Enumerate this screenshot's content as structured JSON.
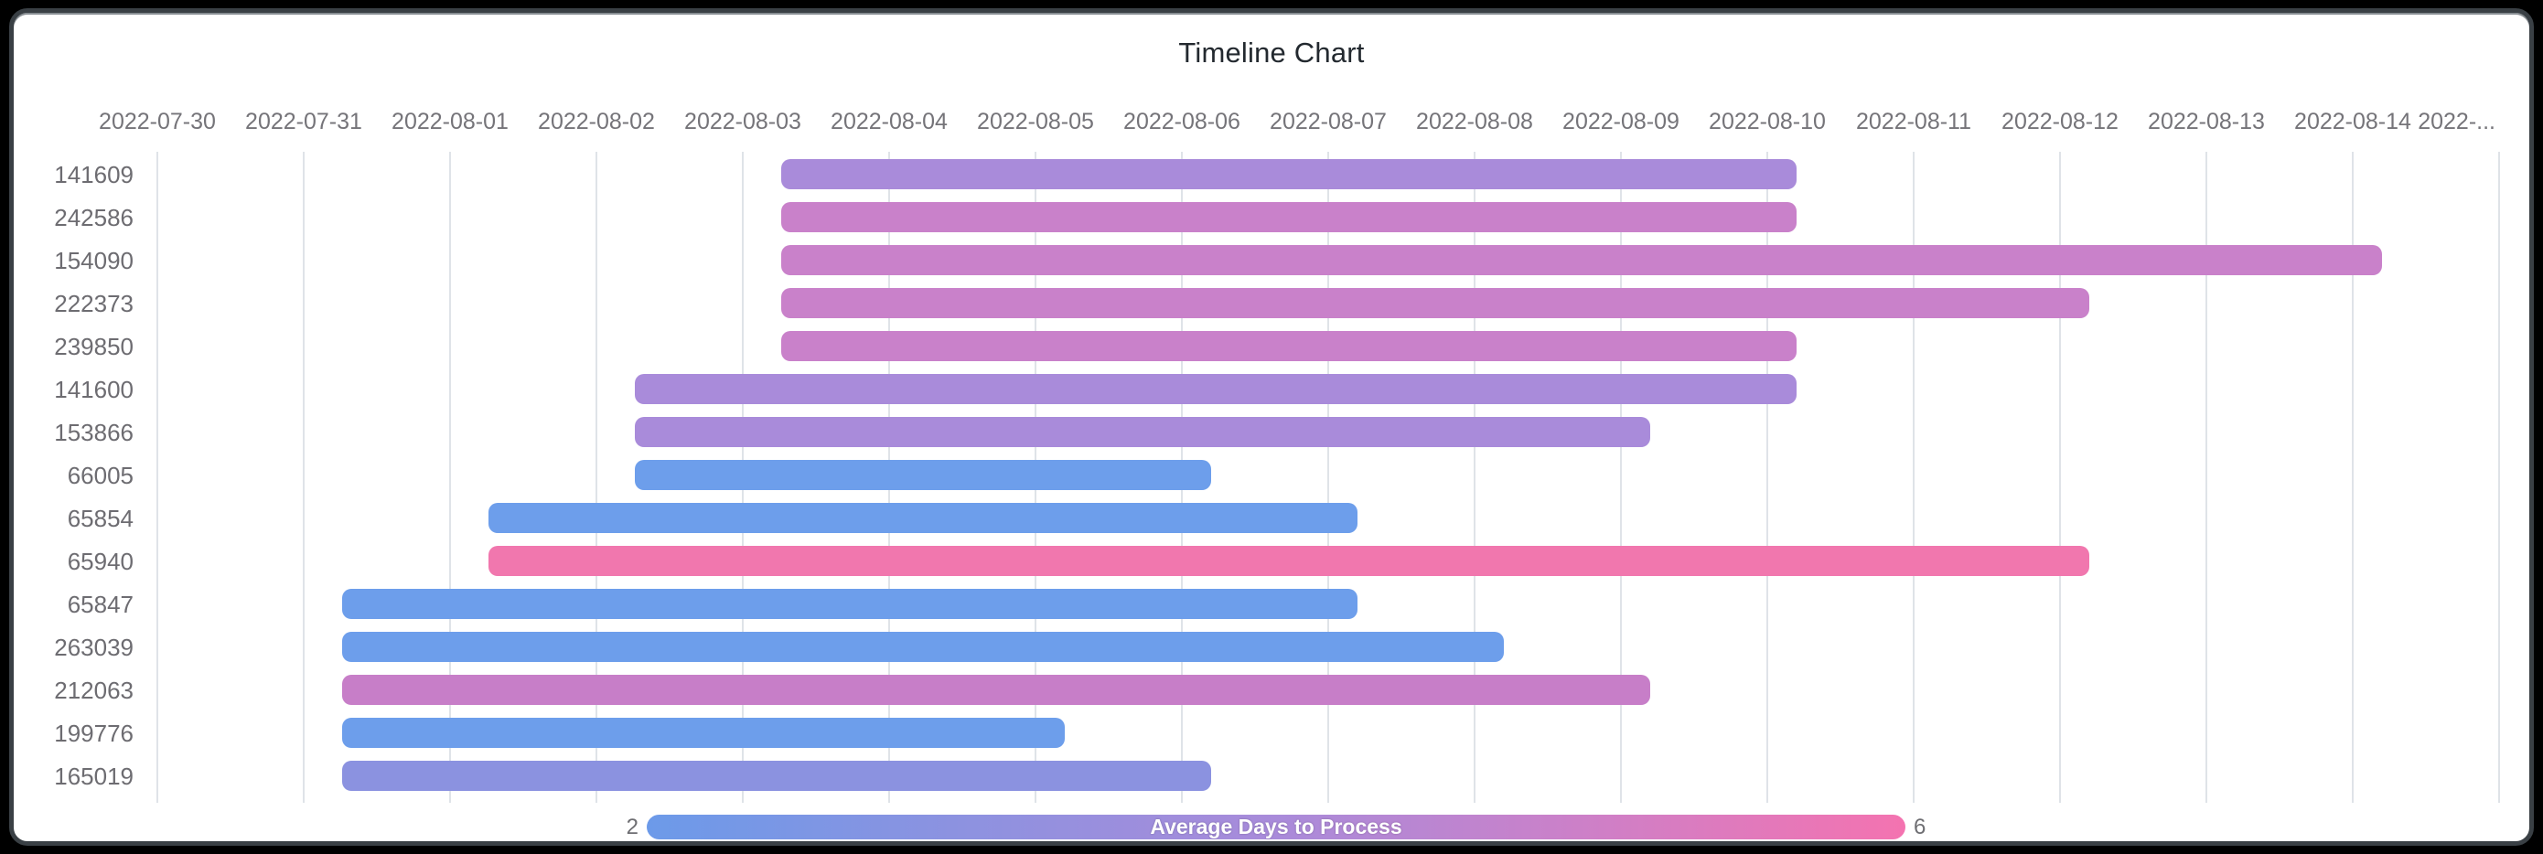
{
  "window": {
    "background_color": "#000000",
    "card_border_color": "#3a4045",
    "card_background_color": "#ffffff"
  },
  "chart_data": {
    "type": "timeline",
    "title": "Timeline Chart",
    "x_axis": {
      "grid": true,
      "start_date": "2022-07-30",
      "days_per_tick": 1,
      "tick_labels": [
        "2022-07-30",
        "2022-07-31",
        "2022-08-01",
        "2022-08-02",
        "2022-08-03",
        "2022-08-04",
        "2022-08-05",
        "2022-08-06",
        "2022-08-07",
        "2022-08-08",
        "2022-08-09",
        "2022-08-10",
        "2022-08-11",
        "2022-08-12",
        "2022-08-13",
        "2022-08-14",
        "2022-..."
      ]
    },
    "rows": [
      {
        "label": "141609",
        "start": "2022-08-03",
        "end": "2022-08-10",
        "duration_days": 7,
        "start_day": 4.26,
        "end_day": 11.2,
        "color": "#a98bda"
      },
      {
        "label": "242586",
        "start": "2022-08-03",
        "end": "2022-08-10",
        "duration_days": 7,
        "start_day": 4.26,
        "end_day": 11.2,
        "color": "#c981ca"
      },
      {
        "label": "154090",
        "start": "2022-08-03",
        "end": "2022-08-14",
        "duration_days": 11,
        "start_day": 4.26,
        "end_day": 15.2,
        "color": "#c981ca"
      },
      {
        "label": "222373",
        "start": "2022-08-03",
        "end": "2022-08-12",
        "duration_days": 9,
        "start_day": 4.26,
        "end_day": 13.2,
        "color": "#c981ca"
      },
      {
        "label": "239850",
        "start": "2022-08-03",
        "end": "2022-08-10",
        "duration_days": 7,
        "start_day": 4.26,
        "end_day": 11.2,
        "color": "#c981ca"
      },
      {
        "label": "141600",
        "start": "2022-08-02",
        "end": "2022-08-10",
        "duration_days": 8,
        "start_day": 3.26,
        "end_day": 11.2,
        "color": "#a98bda"
      },
      {
        "label": "153866",
        "start": "2022-08-02",
        "end": "2022-08-09",
        "duration_days": 7,
        "start_day": 3.26,
        "end_day": 10.2,
        "color": "#a98bda"
      },
      {
        "label": "66005",
        "start": "2022-08-02",
        "end": "2022-08-06",
        "duration_days": 4,
        "start_day": 3.26,
        "end_day": 7.2,
        "color": "#6d9eeb"
      },
      {
        "label": "65854",
        "start": "2022-08-01",
        "end": "2022-08-07",
        "duration_days": 6,
        "start_day": 2.26,
        "end_day": 8.2,
        "color": "#6d9eeb"
      },
      {
        "label": "65940",
        "start": "2022-08-01",
        "end": "2022-08-12",
        "duration_days": 11,
        "start_day": 2.26,
        "end_day": 13.2,
        "color": "#f177ae"
      },
      {
        "label": "65847",
        "start": "2022-07-31",
        "end": "2022-08-07",
        "duration_days": 7,
        "start_day": 1.26,
        "end_day": 8.2,
        "color": "#6d9eeb"
      },
      {
        "label": "263039",
        "start": "2022-07-31",
        "end": "2022-08-08",
        "duration_days": 8,
        "start_day": 1.26,
        "end_day": 9.2,
        "color": "#6d9eeb"
      },
      {
        "label": "212063",
        "start": "2022-07-31",
        "end": "2022-08-09",
        "duration_days": 9,
        "start_day": 1.26,
        "end_day": 10.2,
        "color": "#c77ec8"
      },
      {
        "label": "199776",
        "start": "2022-07-31",
        "end": "2022-08-05",
        "duration_days": 5,
        "start_day": 1.26,
        "end_day": 6.2,
        "color": "#6d9eeb"
      },
      {
        "label": "165019",
        "start": "2022-07-31",
        "end": "2022-08-06",
        "duration_days": 6,
        "start_day": 1.26,
        "end_day": 7.2,
        "color": "#8b92e0"
      }
    ],
    "legend": {
      "label": "Average Days to Process",
      "min_label": "2",
      "max_label": "6",
      "gradient": [
        "#6c9ae9",
        "#8d92e0",
        "#a98bda",
        "#c981ca",
        "#f473b0"
      ]
    },
    "palette": {
      "blue": "#6d9eeb",
      "periwinkle": "#8b92e0",
      "purple": "#a98bda",
      "orchid": "#c981ca",
      "pink": "#f177ae"
    },
    "gridline_color": "#dfe3e8"
  }
}
